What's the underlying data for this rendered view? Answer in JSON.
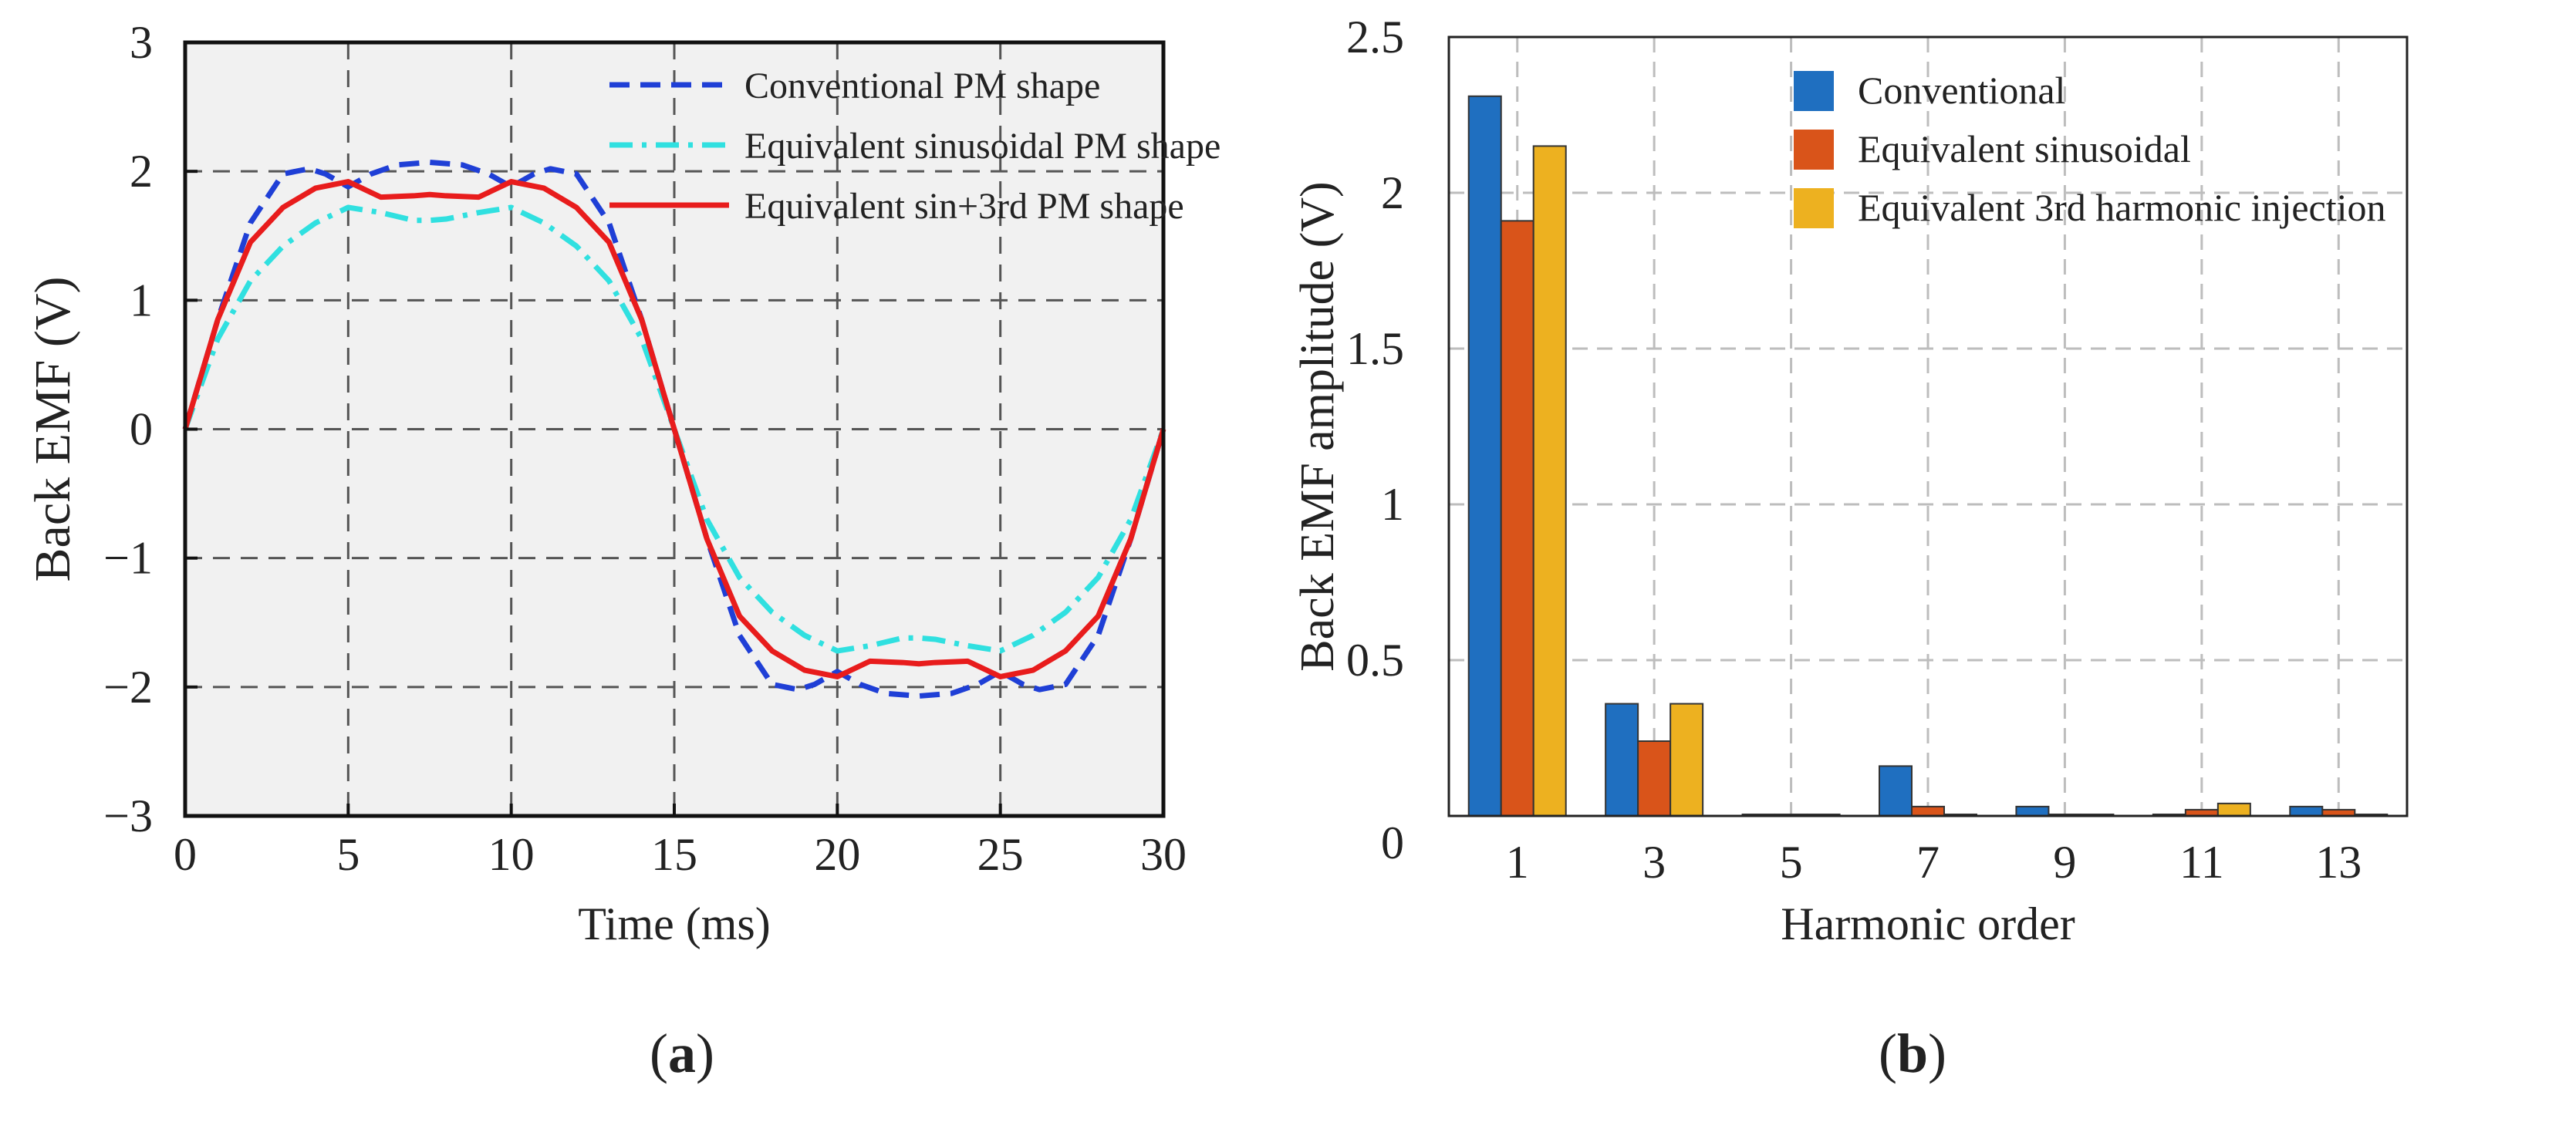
{
  "chart_data": [
    {
      "panel": "(a)",
      "panel_letter": "a",
      "type": "line",
      "title": "",
      "xlabel": "Time (ms)",
      "ylabel": "Back EMF (V)",
      "xlim": [
        0,
        30
      ],
      "ylim": [
        -3,
        3
      ],
      "xticks": [
        "0",
        "5",
        "10",
        "15",
        "20",
        "25",
        "30"
      ],
      "yticks": [
        "−3",
        "−2",
        "−1",
        "0",
        "1",
        "2",
        "3"
      ],
      "grid": true,
      "legend_position": "top-right",
      "series": [
        {
          "name": "Conventional PM shape",
          "color": "#1f3fd6",
          "style": "dashed",
          "x": [
            0,
            1,
            2,
            3,
            3.8,
            4.3,
            5,
            5.7,
            6.5,
            7.5,
            8.5,
            9.3,
            10,
            10.7,
            11.2,
            12,
            13,
            14,
            15,
            16,
            17,
            18,
            18.8,
            19.3,
            20,
            20.7,
            21.5,
            22.5,
            23.5,
            24.3,
            25,
            25.7,
            26.2,
            27,
            28,
            29,
            30
          ],
          "y": [
            0,
            0.85,
            1.6,
            1.98,
            2.02,
            1.98,
            1.88,
            1.98,
            2.05,
            2.07,
            2.05,
            1.98,
            1.88,
            1.98,
            2.02,
            1.98,
            1.6,
            0.85,
            0,
            -0.85,
            -1.6,
            -1.98,
            -2.02,
            -1.98,
            -1.88,
            -1.98,
            -2.05,
            -2.07,
            -2.05,
            -1.98,
            -1.88,
            -1.98,
            -2.02,
            -1.98,
            -1.6,
            -0.85,
            0
          ]
        },
        {
          "name": "Equivalent sinusoidal PM shape",
          "color": "#30e0e0",
          "style": "dashdot",
          "x": [
            0,
            1,
            2,
            3,
            4,
            5,
            6,
            7,
            7.5,
            8,
            9,
            10,
            11,
            12,
            13,
            14,
            15,
            16,
            17,
            18,
            19,
            20,
            21,
            22,
            22.5,
            23,
            24,
            25,
            26,
            27,
            28,
            29,
            30
          ],
          "y": [
            0,
            0.7,
            1.15,
            1.42,
            1.6,
            1.72,
            1.68,
            1.62,
            1.62,
            1.63,
            1.68,
            1.72,
            1.6,
            1.42,
            1.15,
            0.7,
            0,
            -0.7,
            -1.15,
            -1.42,
            -1.6,
            -1.72,
            -1.68,
            -1.62,
            -1.62,
            -1.63,
            -1.68,
            -1.72,
            -1.6,
            -1.42,
            -1.15,
            -0.7,
            0
          ]
        },
        {
          "name": "Equivalent sin+3rd PM shape",
          "color": "#e81c1c",
          "style": "solid",
          "x": [
            0,
            1,
            2,
            3,
            4,
            5,
            6,
            7,
            7.5,
            8,
            9,
            10,
            11,
            12,
            13,
            14,
            15,
            16,
            17,
            18,
            19,
            20,
            21,
            22,
            22.5,
            23,
            24,
            25,
            26,
            27,
            28,
            29,
            30
          ],
          "y": [
            0,
            0.85,
            1.45,
            1.72,
            1.87,
            1.92,
            1.8,
            1.81,
            1.82,
            1.81,
            1.8,
            1.92,
            1.87,
            1.72,
            1.45,
            0.85,
            0,
            -0.85,
            -1.45,
            -1.72,
            -1.87,
            -1.92,
            -1.8,
            -1.81,
            -1.82,
            -1.81,
            -1.8,
            -1.92,
            -1.87,
            -1.72,
            -1.45,
            -0.85,
            0
          ]
        }
      ]
    },
    {
      "panel": "(b)",
      "panel_letter": "b",
      "type": "bar",
      "title": "",
      "xlabel": "Harmonic order",
      "ylabel": "Back EMF amplitude (V)",
      "categories": [
        "1",
        "3",
        "5",
        "7",
        "9",
        "11",
        "13"
      ],
      "ylim": [
        0,
        2.5
      ],
      "yticks": [
        "0",
        "0.5",
        "1",
        "1.5",
        "2",
        "2.5"
      ],
      "grid": true,
      "legend_position": "top-right",
      "series": [
        {
          "name": "Conventional",
          "color": "#1f6fc0",
          "values": [
            2.31,
            0.36,
            0.005,
            0.16,
            0.03,
            0.005,
            0.03
          ]
        },
        {
          "name": "Equivalent sinusoidal",
          "color": "#d9541a",
          "values": [
            1.91,
            0.24,
            0.005,
            0.03,
            0.005,
            0.02,
            0.02
          ]
        },
        {
          "name": "Equivalent 3rd harmonic injection",
          "color": "#edb120",
          "values": [
            2.15,
            0.36,
            0.005,
            0.005,
            0.005,
            0.04,
            0.005
          ]
        }
      ]
    }
  ]
}
